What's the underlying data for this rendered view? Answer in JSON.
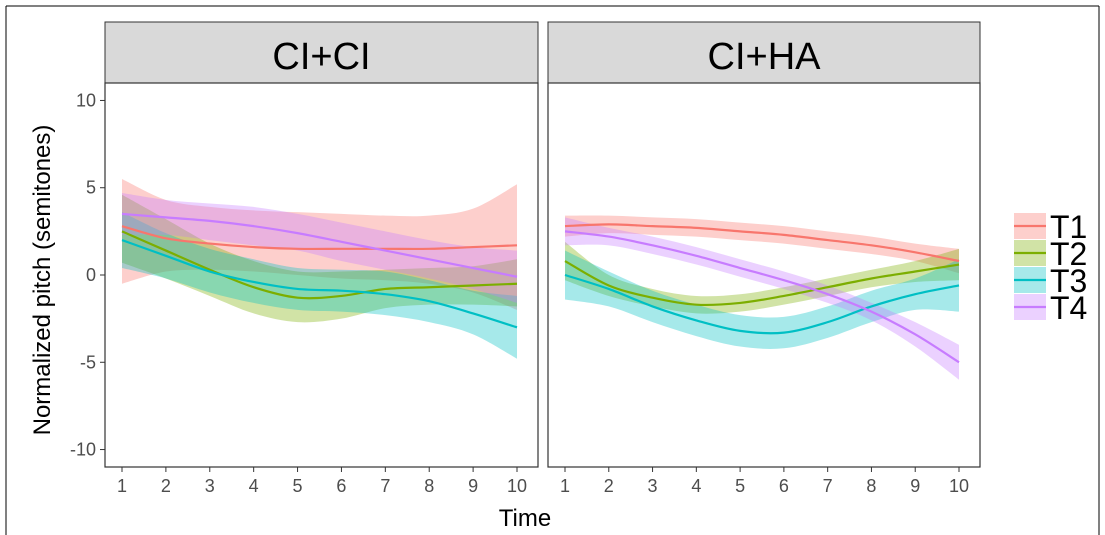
{
  "chart_data": {
    "type": "line",
    "xlabel": "Time",
    "ylabel": "Normalized pitch (semitones)",
    "xlim": [
      1,
      10
    ],
    "ylim": [
      -11,
      11
    ],
    "x_ticks": [
      1,
      2,
      3,
      4,
      5,
      6,
      7,
      8,
      9,
      10
    ],
    "y_ticks": [
      -10,
      -5,
      0,
      5,
      10
    ],
    "grid": false,
    "legend_position": "right",
    "band_opacity": 0.35,
    "x": [
      1,
      2,
      3,
      4,
      5,
      6,
      7,
      8,
      9,
      10
    ],
    "panels": [
      {
        "title": "CI+CI",
        "series": [
          {
            "name": "T1",
            "color": "#F8766D",
            "values": [
              2.8,
              2.1,
              1.8,
              1.6,
              1.5,
              1.5,
              1.5,
              1.5,
              1.6,
              1.7
            ],
            "lower": [
              -0.5,
              0.2,
              0.3,
              0.2,
              0.0,
              -0.2,
              -0.3,
              -0.5,
              -1.0,
              -2.0
            ],
            "upper": [
              5.5,
              4.3,
              3.9,
              3.7,
              3.6,
              3.5,
              3.4,
              3.4,
              3.8,
              5.2
            ]
          },
          {
            "name": "T2",
            "color": "#7CAE00",
            "values": [
              2.5,
              1.4,
              0.3,
              -0.7,
              -1.3,
              -1.2,
              -0.8,
              -0.7,
              -0.6,
              -0.5
            ],
            "lower": [
              0.7,
              -0.2,
              -1.2,
              -2.2,
              -2.7,
              -2.5,
              -1.9,
              -1.7,
              -1.7,
              -1.8
            ],
            "upper": [
              4.6,
              3.2,
              1.8,
              0.8,
              0.2,
              0.2,
              0.3,
              0.4,
              0.5,
              0.9
            ]
          },
          {
            "name": "T3",
            "color": "#00BFC4",
            "values": [
              2.0,
              1.1,
              0.2,
              -0.4,
              -0.8,
              -0.9,
              -1.1,
              -1.5,
              -2.2,
              -3.0
            ],
            "lower": [
              0.4,
              -0.2,
              -1.0,
              -1.6,
              -2.0,
              -2.1,
              -2.3,
              -2.7,
              -3.4,
              -4.8
            ],
            "upper": [
              3.6,
              2.4,
              1.5,
              0.9,
              0.4,
              0.3,
              0.2,
              -0.3,
              -0.9,
              -1.2
            ]
          },
          {
            "name": "T4",
            "color": "#C77CFF",
            "values": [
              3.5,
              3.3,
              3.1,
              2.8,
              2.4,
              1.9,
              1.4,
              0.9,
              0.4,
              -0.1
            ],
            "lower": [
              2.3,
              2.3,
              2.0,
              1.7,
              1.4,
              0.8,
              0.3,
              -0.2,
              -0.8,
              -1.6
            ],
            "upper": [
              4.7,
              4.3,
              4.1,
              3.9,
              3.5,
              3.0,
              2.5,
              2.0,
              1.6,
              1.4
            ]
          }
        ]
      },
      {
        "title": "CI+HA",
        "series": [
          {
            "name": "T1",
            "color": "#F8766D",
            "values": [
              2.8,
              2.9,
              2.8,
              2.7,
              2.5,
              2.3,
              2.0,
              1.7,
              1.3,
              0.8
            ],
            "lower": [
              2.2,
              2.4,
              2.3,
              2.2,
              2.0,
              1.8,
              1.5,
              1.2,
              0.8,
              0.1
            ],
            "upper": [
              3.4,
              3.4,
              3.3,
              3.2,
              3.0,
              2.8,
              2.5,
              2.2,
              1.8,
              1.5
            ]
          },
          {
            "name": "T2",
            "color": "#7CAE00",
            "values": [
              0.8,
              -0.6,
              -1.3,
              -1.7,
              -1.6,
              -1.2,
              -0.7,
              -0.2,
              0.2,
              0.6
            ],
            "lower": [
              -0.3,
              -1.2,
              -1.8,
              -2.2,
              -2.1,
              -1.7,
              -1.2,
              -0.7,
              -0.4,
              -0.3
            ],
            "upper": [
              1.9,
              0.0,
              -0.8,
              -1.2,
              -1.1,
              -0.7,
              -0.2,
              0.3,
              0.8,
              1.5
            ]
          },
          {
            "name": "T3",
            "color": "#00BFC4",
            "values": [
              0.0,
              -0.8,
              -1.8,
              -2.6,
              -3.2,
              -3.3,
              -2.7,
              -1.8,
              -1.1,
              -0.6
            ],
            "lower": [
              -1.4,
              -1.8,
              -2.7,
              -3.5,
              -4.1,
              -4.2,
              -3.6,
              -2.7,
              -2.0,
              -2.1
            ],
            "upper": [
              1.4,
              0.2,
              -0.9,
              -1.7,
              -2.3,
              -2.4,
              -1.8,
              -0.9,
              -0.2,
              0.9
            ]
          },
          {
            "name": "T4",
            "color": "#C77CFF",
            "values": [
              2.5,
              2.2,
              1.7,
              1.1,
              0.4,
              -0.3,
              -1.1,
              -2.1,
              -3.4,
              -5.0
            ],
            "lower": [
              1.7,
              1.7,
              1.2,
              0.6,
              -0.1,
              -0.8,
              -1.6,
              -2.6,
              -4.1,
              -6.0
            ],
            "upper": [
              3.3,
              2.7,
              2.2,
              1.6,
              0.9,
              0.2,
              -0.6,
              -1.6,
              -2.7,
              -4.0
            ]
          }
        ]
      }
    ]
  }
}
